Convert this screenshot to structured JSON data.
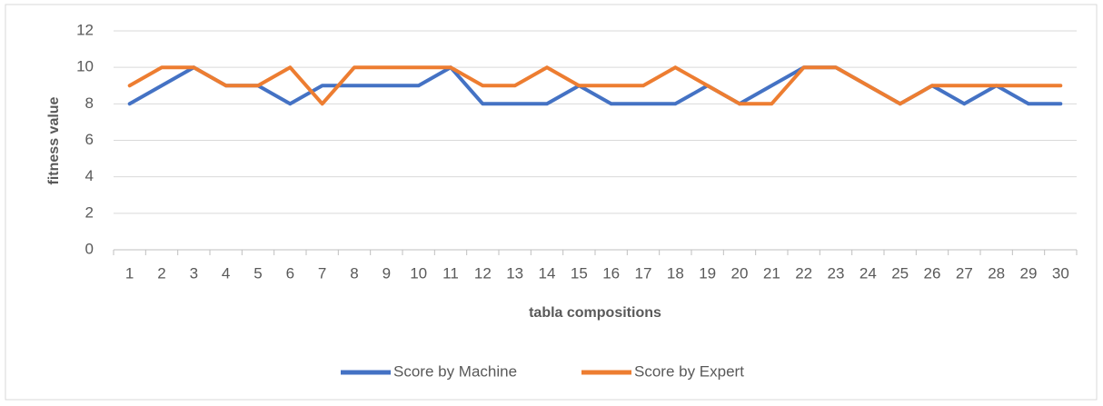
{
  "chart_data": {
    "type": "line",
    "x_label": "tabla compositions",
    "y_label": "fitness value",
    "categories": [
      "1",
      "2",
      "3",
      "4",
      "5",
      "6",
      "7",
      "8",
      "9",
      "10",
      "11",
      "12",
      "13",
      "14",
      "15",
      "16",
      "17",
      "18",
      "19",
      "20",
      "21",
      "22",
      "23",
      "24",
      "25",
      "26",
      "27",
      "28",
      "29",
      "30"
    ],
    "series": [
      {
        "name": "Score by Machine",
        "color": "#4472c4",
        "values": [
          8,
          9,
          10,
          9,
          9,
          8,
          9,
          9,
          9,
          9,
          10,
          8,
          8,
          8,
          9,
          8,
          8,
          8,
          9,
          8,
          9,
          10,
          10,
          9,
          8,
          9,
          8,
          9,
          8,
          8
        ]
      },
      {
        "name": "Score by Expert",
        "color": "#ed7d31",
        "values": [
          9,
          10,
          10,
          9,
          9,
          10,
          8,
          10,
          10,
          10,
          10,
          9,
          9,
          10,
          9,
          9,
          9,
          10,
          9,
          8,
          8,
          10,
          10,
          9,
          8,
          9,
          9,
          9,
          9,
          9
        ]
      }
    ],
    "ylim": [
      0,
      12
    ],
    "yticks": [
      0,
      2,
      4,
      6,
      8,
      10,
      12
    ],
    "grid": true,
    "legend": "bottom"
  }
}
